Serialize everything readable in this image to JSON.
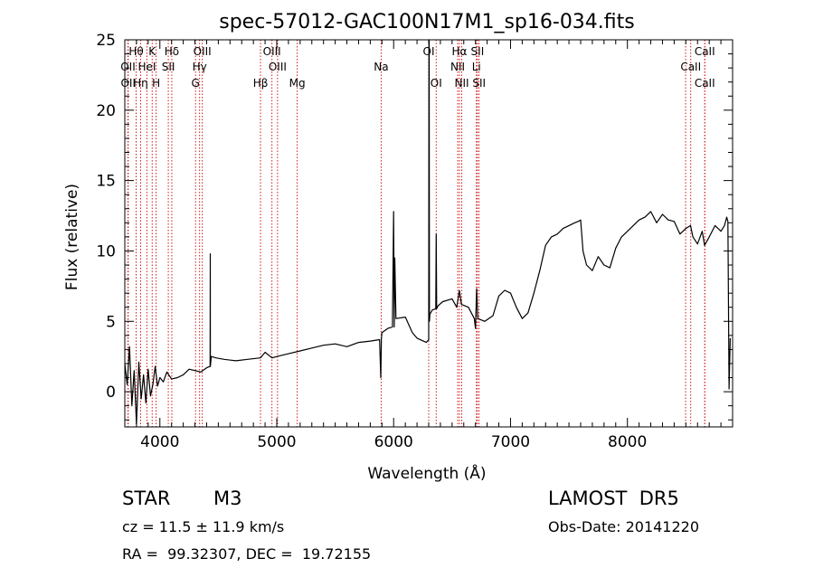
{
  "chart_data": {
    "type": "line",
    "title": "spec-57012-GAC100N17M1_sp16-034.fits",
    "xlabel": "Wavelength (Å)",
    "ylabel": "Flux (relative)",
    "xlim": [
      3700,
      8900
    ],
    "ylim": [
      -2.5,
      25
    ],
    "xticks": [
      4000,
      5000,
      6000,
      7000,
      8000
    ],
    "yticks": [
      0,
      5,
      10,
      15,
      20,
      25
    ],
    "grid": false,
    "line_color": "#000000",
    "marker_color": "#cc0000",
    "spectrum": {
      "x": [
        3700,
        3720,
        3740,
        3760,
        3780,
        3800,
        3820,
        3840,
        3860,
        3880,
        3900,
        3920,
        3940,
        3960,
        3980,
        4000,
        4030,
        4060,
        4100,
        4150,
        4200,
        4250,
        4300,
        4350,
        4400,
        4430,
        4431,
        4432,
        4440,
        4480,
        4550,
        4650,
        4750,
        4860,
        4900,
        4960,
        5000,
        5100,
        5200,
        5300,
        5400,
        5500,
        5600,
        5700,
        5800,
        5880,
        5890,
        5895,
        5900,
        5950,
        5990,
        6000,
        6005,
        6010,
        6020,
        6100,
        6160,
        6200,
        6280,
        6300,
        6302,
        6304,
        6306,
        6310,
        6330,
        6360,
        6364,
        6368,
        6380,
        6420,
        6500,
        6540,
        6562,
        6580,
        6640,
        6690,
        6700,
        6710,
        6720,
        6780,
        6850,
        6900,
        6950,
        7000,
        7050,
        7100,
        7150,
        7200,
        7250,
        7300,
        7350,
        7400,
        7450,
        7500,
        7550,
        7580,
        7600,
        7620,
        7650,
        7700,
        7750,
        7800,
        7850,
        7900,
        7950,
        8000,
        8050,
        8100,
        8150,
        8200,
        8250,
        8300,
        8350,
        8400,
        8450,
        8500,
        8540,
        8560,
        8600,
        8640,
        8660,
        8700,
        8750,
        8800,
        8830,
        8850,
        8860,
        8870,
        8880
      ],
      "y": [
        2.0,
        0.5,
        3.2,
        -1.0,
        1.5,
        -2.3,
        2.1,
        -0.5,
        1.2,
        -0.8,
        1.6,
        -0.3,
        0.5,
        1.8,
        0.4,
        1.0,
        0.7,
        1.4,
        0.9,
        1.0,
        1.2,
        1.6,
        1.5,
        1.4,
        1.7,
        1.8,
        9.8,
        1.8,
        2.5,
        2.4,
        2.3,
        2.2,
        2.3,
        2.4,
        2.8,
        2.4,
        2.5,
        2.7,
        2.9,
        3.1,
        3.3,
        3.4,
        3.2,
        3.5,
        3.6,
        3.7,
        1.0,
        3.8,
        4.2,
        4.5,
        4.6,
        12.8,
        4.6,
        9.5,
        5.2,
        5.3,
        4.2,
        3.8,
        3.5,
        3.7,
        25.0,
        25.0,
        5.0,
        5.5,
        5.8,
        5.9,
        11.2,
        5.9,
        6.1,
        6.4,
        6.6,
        6.0,
        7.2,
        6.2,
        6.0,
        5.2,
        4.5,
        7.3,
        5.2,
        5.0,
        5.4,
        6.8,
        7.2,
        7.0,
        6.0,
        5.2,
        5.6,
        7.0,
        8.6,
        10.4,
        11.0,
        11.2,
        11.6,
        11.8,
        12.0,
        12.1,
        12.2,
        10.0,
        9.0,
        8.6,
        9.6,
        9.0,
        8.8,
        10.2,
        11.0,
        11.4,
        11.8,
        12.2,
        12.4,
        12.8,
        12.0,
        12.6,
        12.2,
        12.1,
        11.2,
        11.6,
        11.8,
        11.0,
        10.5,
        11.4,
        10.4,
        11.0,
        11.8,
        11.4,
        11.8,
        12.4,
        12.1,
        0.2,
        3.8
      ]
    },
    "lines": [
      {
        "label": "Hθ",
        "x": 3797,
        "row": 0
      },
      {
        "label": "K",
        "x": 3934,
        "row": 0
      },
      {
        "label": "Hδ",
        "x": 4102,
        "row": 0
      },
      {
        "label": "OIII",
        "x": 4363,
        "row": 0
      },
      {
        "label": "OIII",
        "x": 4959,
        "row": 0
      },
      {
        "label": "OI",
        "x": 6300,
        "row": 0
      },
      {
        "label": "Hα",
        "x": 6563,
        "row": 0
      },
      {
        "label": "SII",
        "x": 6717,
        "row": 0
      },
      {
        "label": "CaII",
        "x": 8662,
        "row": 0
      },
      {
        "label": "OII",
        "x": 3727,
        "row": 1
      },
      {
        "label": "HeI",
        "x": 3889,
        "row": 1
      },
      {
        "label": "SII",
        "x": 4072,
        "row": 1
      },
      {
        "label": "Hγ",
        "x": 4340,
        "row": 1
      },
      {
        "label": "OIII",
        "x": 5007,
        "row": 1
      },
      {
        "label": "NII",
        "x": 6548,
        "row": 1
      },
      {
        "label": "Li",
        "x": 6708,
        "row": 1
      },
      {
        "label": "CaII",
        "x": 8542,
        "row": 1
      },
      {
        "label": "OII",
        "x": 3729,
        "row": 2
      },
      {
        "label": "Hη",
        "x": 3835,
        "row": 2
      },
      {
        "label": "H",
        "x": 3968,
        "row": 2
      },
      {
        "label": "G",
        "x": 4305,
        "row": 2
      },
      {
        "label": "Hβ",
        "x": 4861,
        "row": 2
      },
      {
        "label": "Mg",
        "x": 5175,
        "row": 2
      },
      {
        "label": "Na",
        "x": 5893,
        "row": 2,
        "dy_row": -1
      },
      {
        "label": "OI",
        "x": 6364,
        "row": 2
      },
      {
        "label": "NII",
        "x": 6583,
        "row": 2
      },
      {
        "label": "SII",
        "x": 6731,
        "row": 2
      },
      {
        "label": "CaII",
        "x": 8498,
        "row": 2,
        "hide_label": true
      },
      {
        "label": "CaII",
        "x": 8662,
        "row": 2
      }
    ]
  },
  "info": {
    "object_class": "STAR",
    "subclass": "M3",
    "survey": "LAMOST  DR5",
    "cz": "cz = 11.5 ± 11.9 km/s",
    "obs_date": "Obs-Date: 20141220",
    "coords": "RA =  99.32307, DEC =  19.72155"
  }
}
